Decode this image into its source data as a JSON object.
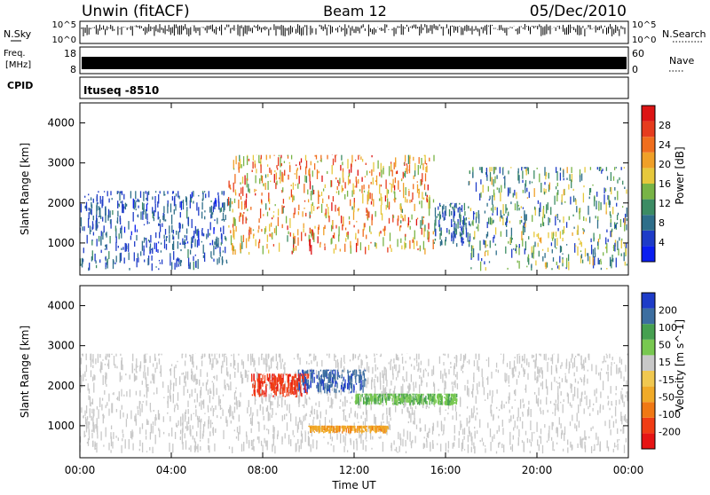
{
  "header": {
    "station": "Unwin (fitACF)",
    "beam": "Beam 12",
    "date": "05/Dec/2010"
  },
  "status_panels": {
    "nsky_label": "N.Sky",
    "nsky_ticks": [
      "10^5",
      "10^0"
    ],
    "nsearch_label": "N.Search",
    "nsearch_ticks": [
      "10^5",
      "10^0"
    ],
    "freq_label": "Freq.",
    "freq_unit": "[MHz]",
    "freq_ticks": [
      "18",
      "8"
    ],
    "nave_label": "Nave",
    "nave_ticks": [
      "60",
      "0"
    ],
    "cpid_label": "CPID",
    "cpid_value": "Ituseq -8510"
  },
  "colors": {
    "power_scale": [
      "#0a1ef0",
      "#1e3cc8",
      "#2e6e8a",
      "#3c8c64",
      "#78b446",
      "#e6c83c",
      "#f0a028",
      "#f06e1e",
      "#e63c1e",
      "#dc1414"
    ],
    "velocity_scale": [
      "#e61414",
      "#f03c14",
      "#f07814",
      "#f0aa28",
      "#f0c850",
      "#c8c8c8",
      "#78c850",
      "#46a050",
      "#3c6ea0",
      "#1e3cc8"
    ]
  },
  "chart_data": [
    {
      "type": "heatmap",
      "name": "power",
      "xlabel": "",
      "ylabel": "Slant Range [km]",
      "xlim": [
        0,
        24
      ],
      "ylim": [
        200,
        4500
      ],
      "yticks": [
        1000,
        2000,
        3000,
        4000
      ],
      "colorbar": {
        "label": "Power [dB]",
        "range": [
          0,
          32
        ],
        "ticks": [
          "4",
          "8",
          "12",
          "16",
          "20",
          "24",
          "28"
        ]
      },
      "echo_regions": [
        {
          "t_start": 0.0,
          "t_end": 6.5,
          "range_min": 300,
          "range_max": 2300,
          "value_min": 3,
          "value_max": 10
        },
        {
          "t_start": 6.5,
          "t_end": 15.5,
          "range_min": 700,
          "range_max": 3200,
          "value_min": 12,
          "value_max": 30
        },
        {
          "t_start": 15.5,
          "t_end": 17.0,
          "range_min": 900,
          "range_max": 2000,
          "value_min": 4,
          "value_max": 12
        },
        {
          "t_start": 17.0,
          "t_end": 24.0,
          "range_min": 300,
          "range_max": 2900,
          "value_min": 4,
          "value_max": 20
        }
      ]
    },
    {
      "type": "heatmap",
      "name": "velocity",
      "xlabel": "Time UT",
      "ylabel": "Slant Range [km]",
      "xlim": [
        0,
        24
      ],
      "ylim": [
        200,
        4500
      ],
      "xtick_labels": [
        "00:00",
        "04:00",
        "08:00",
        "12:00",
        "16:00",
        "20:00",
        "00:00"
      ],
      "yticks": [
        1000,
        2000,
        3000,
        4000
      ],
      "colorbar": {
        "label": "Velocity [m s^-1]",
        "ticks": [
          "200",
          "100",
          "50",
          "15",
          "-15",
          "-50",
          "-100",
          "-200"
        ]
      },
      "echo_regions": [
        {
          "t_start": 0.0,
          "t_end": 24.0,
          "range_min": 300,
          "range_max": 2800,
          "value_min": -15,
          "value_max": 15
        },
        {
          "t_start": 9.5,
          "t_end": 12.5,
          "range_min": 1800,
          "range_max": 2400,
          "value_min": 100,
          "value_max": 250
        },
        {
          "t_start": 7.5,
          "t_end": 10.0,
          "range_min": 1700,
          "range_max": 2300,
          "value_min": -250,
          "value_max": -100
        },
        {
          "t_start": 12.0,
          "t_end": 16.5,
          "range_min": 1500,
          "range_max": 1800,
          "value_min": 30,
          "value_max": 60
        },
        {
          "t_start": 10.0,
          "t_end": 13.5,
          "range_min": 800,
          "range_max": 1000,
          "value_min": -60,
          "value_max": -20
        }
      ]
    }
  ]
}
